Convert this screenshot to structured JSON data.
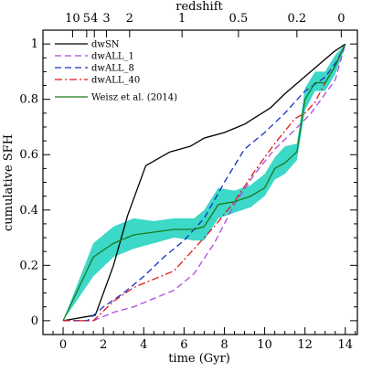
{
  "chart_data": {
    "type": "line",
    "xlabel": "time (Gyr)",
    "ylabel": "cumulative SFH",
    "top_axis_label": "redshift",
    "xlim": [
      -1,
      14.6
    ],
    "ylim": [
      -0.05,
      1.05
    ],
    "x_ticks": [
      0,
      2,
      4,
      6,
      8,
      10,
      12,
      14
    ],
    "y_ticks": [
      0,
      0.2,
      0.4,
      0.6,
      0.8,
      1
    ],
    "redshift_ticks": [
      {
        "label": "10",
        "t": 0.47
      },
      {
        "label": "5",
        "t": 1.17
      },
      {
        "label": "4",
        "t": 1.55
      },
      {
        "label": "3",
        "t": 2.15
      },
      {
        "label": "2",
        "t": 3.3
      },
      {
        "label": "1",
        "t": 5.9
      },
      {
        "label": "0.5",
        "t": 8.7
      },
      {
        "label": "0.2",
        "t": 11.6
      },
      {
        "label": "0",
        "t": 13.8
      }
    ],
    "grid": false,
    "legend_position": "top-left",
    "series": [
      {
        "name": "dwSN",
        "style": "solid",
        "color": "#000000",
        "x": [
          0,
          1.6,
          2.5,
          3.2,
          4.1,
          5.3,
          6.3,
          7.0,
          8.0,
          9.0,
          10.3,
          11.0,
          11.8,
          12.6,
          13.4,
          14.0
        ],
        "y": [
          0,
          0.02,
          0.2,
          0.38,
          0.56,
          0.61,
          0.63,
          0.66,
          0.68,
          0.71,
          0.77,
          0.82,
          0.87,
          0.92,
          0.97,
          1.0
        ]
      },
      {
        "name": "dwALL_1",
        "style": "dash",
        "color": "#b048e0",
        "x": [
          0,
          1.5,
          2.5,
          3.5,
          4.5,
          5.5,
          6.5,
          7.5,
          8.5,
          9.5,
          10.5,
          11.5,
          12.3,
          13.0,
          13.5,
          14.0
        ],
        "y": [
          0,
          0.0,
          0.03,
          0.05,
          0.08,
          0.11,
          0.17,
          0.28,
          0.42,
          0.53,
          0.62,
          0.69,
          0.75,
          0.82,
          0.87,
          1.0
        ]
      },
      {
        "name": "dwALL_8",
        "style": "dash",
        "color": "#1630c8",
        "x": [
          0,
          1.2,
          2.0,
          3.0,
          4.0,
          5.0,
          6.0,
          7.0,
          8.0,
          9.0,
          10.0,
          11.0,
          12.0,
          13.0,
          13.6,
          14.0
        ],
        "y": [
          0,
          0.0,
          0.05,
          0.1,
          0.16,
          0.23,
          0.29,
          0.37,
          0.5,
          0.62,
          0.68,
          0.75,
          0.83,
          0.88,
          0.94,
          1.0
        ]
      },
      {
        "name": "dwALL_40",
        "style": "dashdot",
        "color": "#e01818",
        "x": [
          0,
          1.5,
          2.5,
          3.5,
          4.5,
          5.5,
          6.5,
          7.5,
          8.5,
          9.5,
          10.5,
          11.5,
          12.0,
          12.5,
          13.0,
          13.5,
          14.0
        ],
        "y": [
          0,
          0.0,
          0.07,
          0.12,
          0.15,
          0.18,
          0.26,
          0.34,
          0.43,
          0.54,
          0.64,
          0.73,
          0.75,
          0.79,
          0.86,
          0.92,
          1.0
        ]
      },
      {
        "name": "Weisz et al. (2014)",
        "style": "solid",
        "color": "#1a7a1a",
        "band_color": "#3cd8c8",
        "x": [
          0,
          1.5,
          2.5,
          3.5,
          4.5,
          5.5,
          6.5,
          7.0,
          7.7,
          8.5,
          9.3,
          10.0,
          10.5,
          11.0,
          11.6,
          12.0,
          12.5,
          13.0,
          13.5,
          14.0
        ],
        "y": [
          0,
          0.23,
          0.28,
          0.31,
          0.32,
          0.33,
          0.33,
          0.34,
          0.42,
          0.43,
          0.45,
          0.48,
          0.55,
          0.57,
          0.61,
          0.8,
          0.86,
          0.86,
          0.92,
          1.0
        ],
        "y_low": [
          0,
          0.16,
          0.23,
          0.26,
          0.28,
          0.3,
          0.29,
          0.29,
          0.37,
          0.39,
          0.41,
          0.45,
          0.51,
          0.53,
          0.58,
          0.76,
          0.83,
          0.83,
          0.89,
          0.99
        ],
        "y_high": [
          0,
          0.28,
          0.34,
          0.37,
          0.36,
          0.37,
          0.37,
          0.4,
          0.48,
          0.47,
          0.49,
          0.53,
          0.59,
          0.63,
          0.64,
          0.84,
          0.9,
          0.9,
          0.96,
          1.0
        ]
      }
    ]
  }
}
